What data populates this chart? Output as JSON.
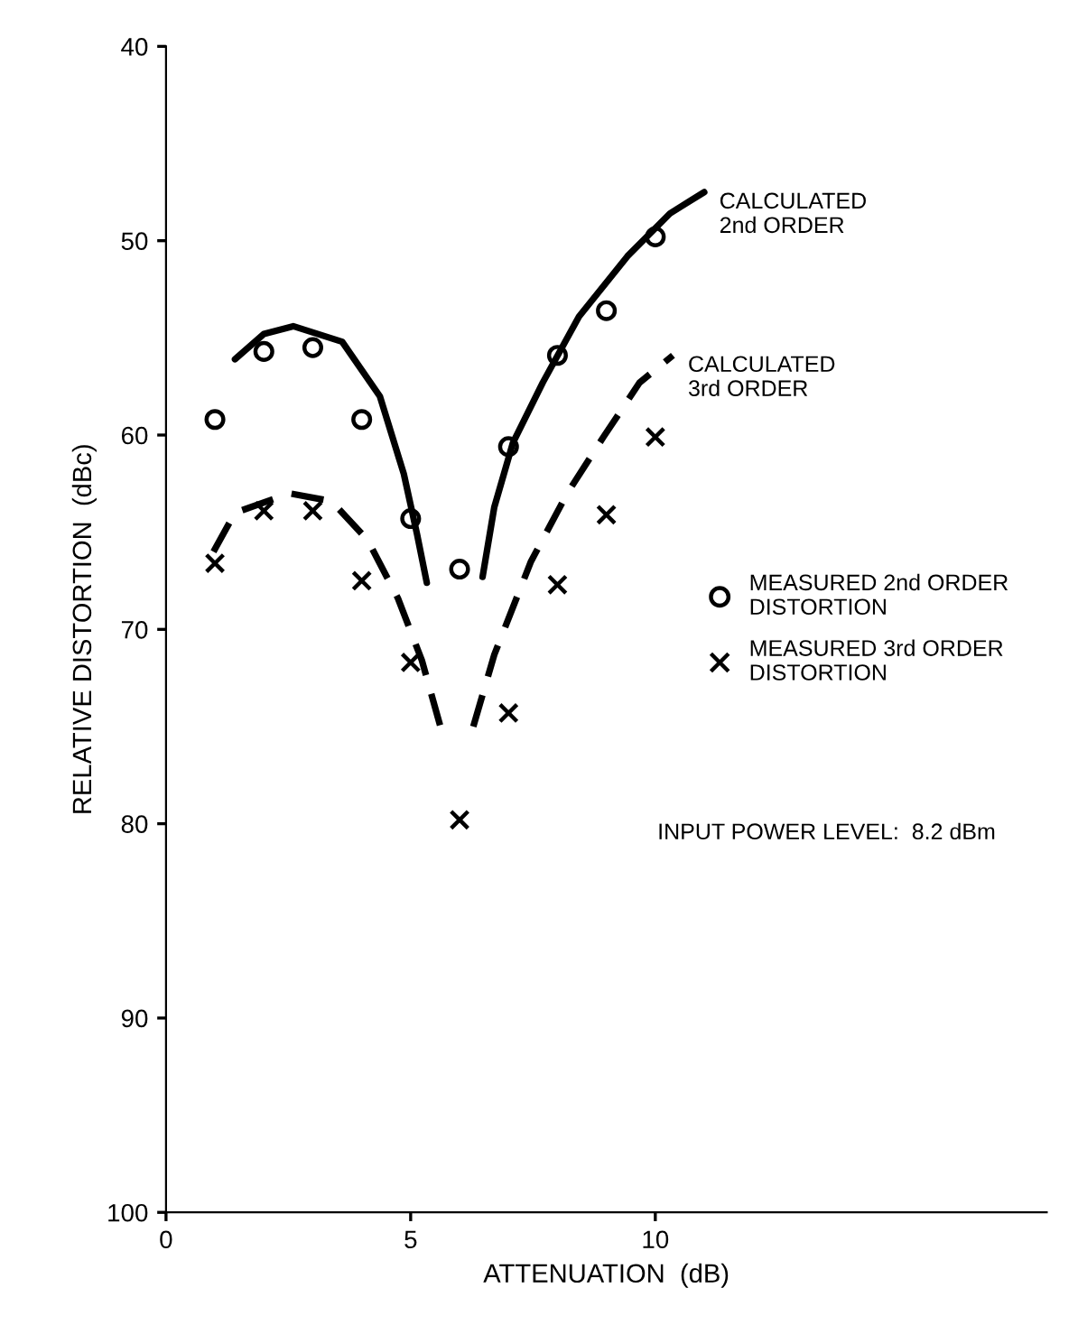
{
  "chart_data": {
    "type": "line",
    "xlabel": "ATTENUATION  (dB)",
    "ylabel": "RELATIVE DISTORTION  (dBc)",
    "xlim": [
      0,
      18
    ],
    "xticks": [
      0,
      5,
      10
    ],
    "ylim": [
      100,
      40
    ],
    "yticks": [
      40,
      50,
      60,
      70,
      80,
      90,
      100
    ],
    "grid": false,
    "legend": "right",
    "annotations": [
      "INPUT POWER LEVEL:  8.2 dBm"
    ],
    "series": [
      {
        "name": "CALCULATED\n2nd ORDER",
        "line_style": "solid",
        "marker": "none",
        "color": "#000000",
        "x": [
          1.41,
          2.0,
          2.6,
          3.6,
          4.37,
          4.86,
          5.13,
          5.33,
          5.9,
          6.47,
          6.71,
          7.09,
          7.7,
          8.44,
          9.43,
          10.3,
          11.0
        ],
        "values": [
          56.1,
          54.8,
          54.4,
          55.2,
          58.0,
          62.0,
          65.1,
          67.6,
          null,
          67.3,
          63.7,
          60.4,
          57.3,
          53.9,
          50.8,
          48.6,
          47.5
        ]
      },
      {
        "name": "CALCULATED\n3rd ORDER",
        "line_style": "dashed",
        "marker": "none",
        "color": "#000000",
        "x": [
          0.97,
          1.41,
          2.52,
          3.38,
          4.12,
          4.74,
          5.23,
          5.63,
          5.95,
          6.28,
          6.71,
          7.46,
          8.2,
          8.94,
          9.68,
          10.36
        ],
        "values": [
          66.0,
          64.0,
          63.0,
          63.4,
          65.4,
          68.4,
          71.6,
          75.2,
          null,
          75.0,
          71.3,
          66.5,
          63.0,
          60.1,
          57.3,
          55.9
        ]
      },
      {
        "name": "MEASURED 2nd ORDER\nDISTORTION",
        "type": "scatter",
        "marker": "circle",
        "color": "#000000",
        "x": [
          1,
          2,
          3,
          4,
          5,
          6,
          7,
          8,
          9,
          10
        ],
        "values": [
          59.2,
          55.7,
          55.5,
          59.2,
          64.3,
          66.9,
          60.6,
          55.9,
          53.6,
          49.8
        ]
      },
      {
        "name": "MEASURED 3rd ORDER\nDISTORTION",
        "type": "scatter",
        "marker": "cross",
        "color": "#000000",
        "x": [
          1,
          2,
          3,
          4,
          5,
          6,
          7,
          8,
          9,
          10
        ],
        "values": [
          66.6,
          63.9,
          63.9,
          67.5,
          71.7,
          79.8,
          74.3,
          67.7,
          64.1,
          60.1
        ]
      }
    ]
  }
}
